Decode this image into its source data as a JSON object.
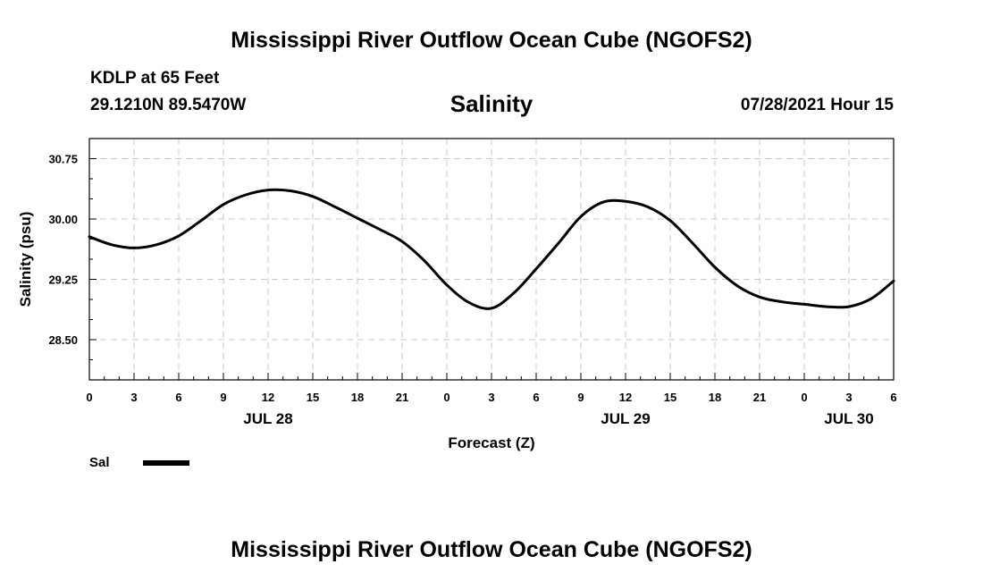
{
  "header": {
    "title": "Mississippi River Outflow Ocean Cube (NGOFS2)",
    "station": "KDLP at 65 Feet",
    "coords": "29.1210N  89.5470W",
    "parameter": "Salinity",
    "datetime": "07/28/2021 Hour 15"
  },
  "footer": {
    "title": "Mississippi River Outflow Ocean Cube (NGOFS2)"
  },
  "legend": {
    "label": "Sal",
    "color": "#000000"
  },
  "chart_data": {
    "type": "line",
    "title": "Salinity",
    "xlabel": "Forecast (Z)",
    "ylabel": "Salinity (psu)",
    "x_units": "forecast hour from 07/28/2021 00Z",
    "xlim": [
      0,
      54
    ],
    "ylim": [
      28.0,
      31.0
    ],
    "x_ticks": [
      0,
      3,
      6,
      9,
      12,
      15,
      18,
      21,
      24,
      27,
      30,
      33,
      36,
      39,
      42,
      45,
      48,
      51,
      54
    ],
    "x_tick_labels": [
      "0",
      "3",
      "6",
      "9",
      "12",
      "15",
      "18",
      "21",
      "0",
      "3",
      "6",
      "9",
      "12",
      "15",
      "18",
      "21",
      "0",
      "3",
      "6"
    ],
    "y_ticks": [
      28.5,
      29.25,
      30.0,
      30.75
    ],
    "y_tick_labels": [
      "28.50",
      "29.25",
      "30.00",
      "30.75"
    ],
    "date_labels": [
      {
        "x": 12,
        "label": "JUL 28"
      },
      {
        "x": 36,
        "label": "JUL 29"
      },
      {
        "x": 51,
        "label": "JUL 30"
      }
    ],
    "grid": true,
    "legend_position": "bottom-left",
    "series": [
      {
        "name": "Sal",
        "color": "#000000",
        "x": [
          0,
          1.5,
          3,
          4.5,
          6,
          7.5,
          9,
          10.5,
          12,
          13.5,
          15,
          16.5,
          18,
          19.5,
          21,
          22.5,
          24,
          25.5,
          27,
          28.5,
          30,
          31.5,
          33,
          34.5,
          36,
          37.5,
          39,
          40.5,
          42,
          43.5,
          45,
          46.5,
          48,
          49.5,
          51,
          52.5,
          54
        ],
        "y": [
          29.78,
          29.68,
          29.64,
          29.68,
          29.79,
          29.98,
          30.18,
          30.3,
          30.36,
          30.35,
          30.28,
          30.15,
          30.01,
          29.87,
          29.72,
          29.48,
          29.18,
          28.96,
          28.89,
          29.08,
          29.38,
          29.7,
          30.03,
          30.21,
          30.22,
          30.15,
          29.98,
          29.7,
          29.4,
          29.17,
          29.03,
          28.97,
          28.94,
          28.91,
          28.91,
          29.01,
          29.23
        ]
      }
    ]
  }
}
